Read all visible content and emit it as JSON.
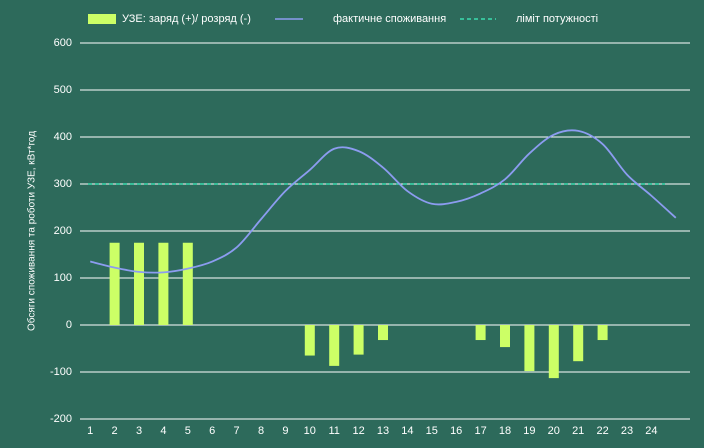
{
  "chart_data": {
    "type": "bar",
    "ylabel": "Обсяги споживання та роботи УЗЕ, кВт*год",
    "categories": [
      "1",
      "2",
      "3",
      "4",
      "5",
      "6",
      "7",
      "8",
      "9",
      "10",
      "11",
      "12",
      "13",
      "14",
      "15",
      "16",
      "17",
      "18",
      "19",
      "20",
      "21",
      "22",
      "23",
      "24",
      null
    ],
    "series": [
      {
        "name": "УЗЕ: заряд (+)/ розряд (-)",
        "type": "bar",
        "color": "#ccff66",
        "values": [
          0,
          175,
          175,
          175,
          175,
          0,
          0,
          0,
          0,
          -65,
          -87,
          -63,
          -32,
          0,
          0,
          0,
          -32,
          -47,
          -98,
          -113,
          -77,
          -32,
          0,
          0,
          0
        ]
      },
      {
        "name": "фактичне споживання",
        "type": "line",
        "color": "#8c9cf0",
        "values": [
          135,
          122,
          113,
          112,
          120,
          135,
          165,
          225,
          285,
          330,
          375,
          370,
          335,
          285,
          258,
          262,
          280,
          310,
          365,
          405,
          413,
          385,
          320,
          275,
          228
        ]
      }
    ],
    "limit": {
      "name": "ліміт потужності",
      "value": 300,
      "color": "#3ddbb0"
    },
    "ylim": [
      -200,
      600
    ],
    "yticks": [
      -200,
      -100,
      0,
      100,
      200,
      300,
      400,
      500,
      600
    ],
    "grid": true
  }
}
